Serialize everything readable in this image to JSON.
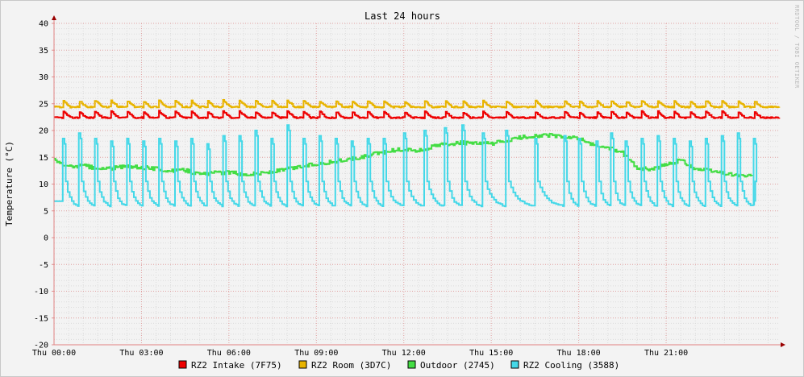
{
  "chart_data": {
    "type": "line",
    "title": "Last 24 hours",
    "ylabel": "Temperature (°C)",
    "xlabel": "",
    "watermark": "RRDTOOL / TOBI OETIKER",
    "ylim": [
      -20,
      40
    ],
    "xlim_hours": [
      0,
      24.9
    ],
    "y_ticks": [
      "40",
      "35",
      "30",
      "25",
      "20",
      "15",
      "10",
      "5",
      "0",
      "-5",
      "-10",
      "-15",
      "-20"
    ],
    "x_ticks": [
      "Thu 00:00",
      "Thu 03:00",
      "Thu 06:00",
      "Thu 09:00",
      "Thu 12:00",
      "Thu 15:00",
      "Thu 18:00",
      "Thu 21:00"
    ],
    "x_tick_hours": [
      0,
      3,
      6,
      9,
      12,
      15,
      18,
      21
    ],
    "grid": true,
    "legend_position": "bottom",
    "series": [
      {
        "name": "RZ2 Intake (7F75)",
        "color": "#ee0000",
        "base": 22.4,
        "peak": 23.6
      },
      {
        "name": "RZ2 Room (3D7C)",
        "color": "#e8b400",
        "base": 24.4,
        "peak": 25.6
      },
      {
        "name": "Outdoor (2745)",
        "color": "#44dd44",
        "hours": [
          0,
          0.5,
          1,
          1.5,
          2,
          2.5,
          3,
          3.5,
          4,
          4.5,
          5,
          5.5,
          6,
          6.5,
          7,
          7.5,
          8,
          8.5,
          9,
          9.5,
          10,
          10.5,
          11,
          11.5,
          12,
          12.5,
          13,
          13.5,
          14,
          14.5,
          15,
          15.5,
          16,
          16.5,
          17,
          17.5,
          18,
          18.5,
          19,
          19.5,
          20,
          20.5,
          21,
          21.5,
          22,
          22.5,
          23,
          23.5,
          24
        ],
        "values": [
          14.5,
          13.2,
          13.5,
          12.8,
          13.0,
          13.3,
          13.1,
          12.9,
          12.4,
          12.6,
          11.8,
          12.1,
          12.2,
          11.8,
          12.0,
          12.3,
          12.8,
          13.3,
          13.8,
          14.1,
          14.5,
          14.9,
          15.6,
          16.2,
          16.5,
          16.2,
          17.0,
          17.5,
          17.7,
          17.5,
          17.6,
          18.0,
          18.7,
          19.0,
          19.1,
          18.7,
          18.5,
          17.2,
          16.8,
          15.8,
          13.0,
          12.7,
          13.6,
          14.5,
          12.8,
          12.5,
          12.0,
          11.6,
          11.4
        ]
      },
      {
        "name": "RZ2 Cooling (3588)",
        "color": "#44d8e8",
        "cycle_hours": [
          0.3,
          0.85,
          1.4,
          1.95,
          2.5,
          3.05,
          3.6,
          4.15,
          4.7,
          5.25,
          5.8,
          6.35,
          6.9,
          7.45,
          8.0,
          8.55,
          9.1,
          9.65,
          10.2,
          10.75,
          11.3,
          12.0,
          12.7,
          13.4,
          14.0,
          14.7,
          15.5,
          16.5,
          17.5,
          18.0,
          18.6,
          19.1,
          19.6,
          20.15,
          20.7,
          21.25,
          21.8,
          22.35,
          22.9,
          23.45,
          24.0
        ],
        "peak_values": [
          18.5,
          19.5,
          18.5,
          18.0,
          18.5,
          18.0,
          18.5,
          18.0,
          18.5,
          17.5,
          19.0,
          19.0,
          20.0,
          18.5,
          21.0,
          18.5,
          19.0,
          18.5,
          18.0,
          18.5,
          18.5,
          19.5,
          20.0,
          20.5,
          21.0,
          19.5,
          20.0,
          18.5,
          19.0,
          18.5,
          18.0,
          19.5,
          18.0,
          18.5,
          19.0,
          18.5,
          18.0,
          18.5,
          19.0,
          19.5,
          18.5
        ],
        "trough_base": 5.7
      }
    ]
  }
}
